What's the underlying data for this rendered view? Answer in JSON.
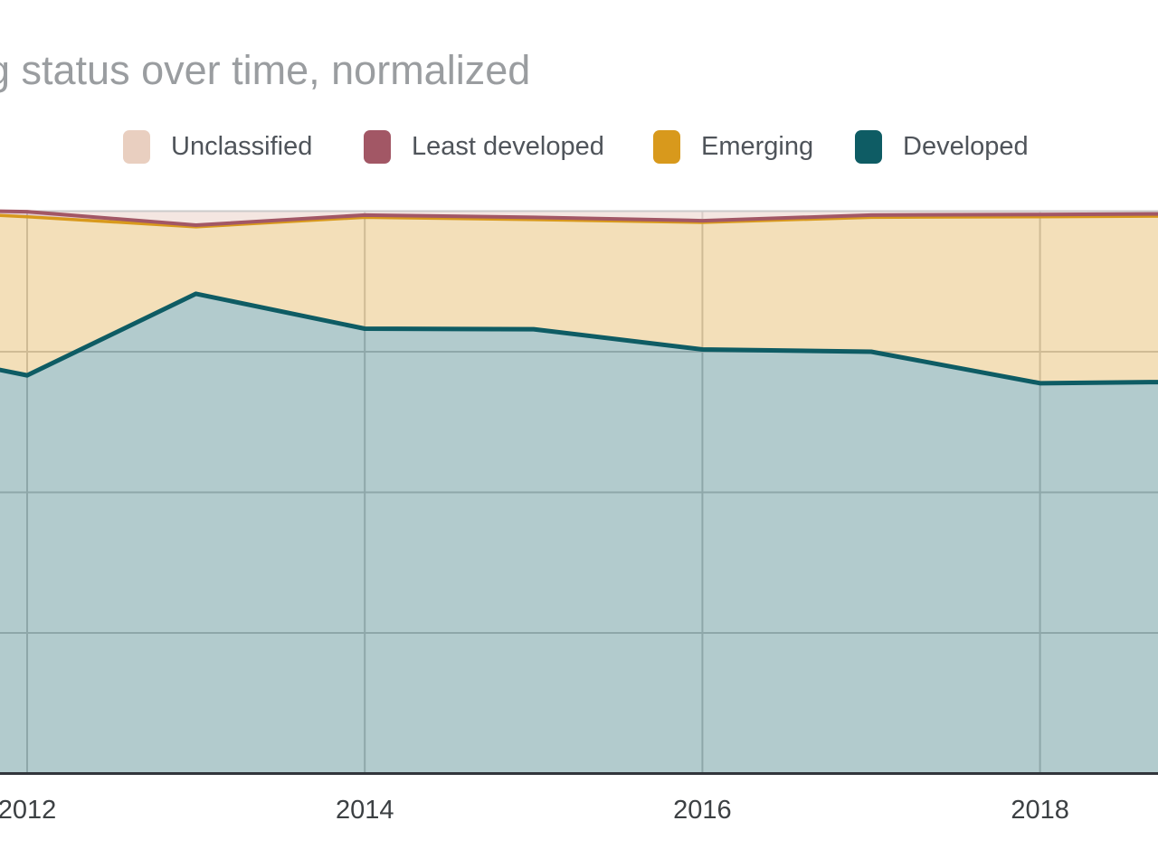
{
  "title": "g status over time, normalized",
  "legend": [
    {
      "label": "Unclassified",
      "color": "#e9cfc0"
    },
    {
      "label": "Least developed",
      "color": "#a25765"
    },
    {
      "label": "Emerging",
      "color": "#d8991c"
    },
    {
      "label": "Developed",
      "color": "#0e5c64"
    }
  ],
  "chart_data": {
    "type": "area",
    "stacked": true,
    "normalized": true,
    "title": "g status over time, normalized",
    "xlabel": "",
    "ylabel": "",
    "ylim": [
      0,
      100
    ],
    "grid": true,
    "legend_position": "top",
    "x": [
      2011.8,
      2012,
      2013,
      2014,
      2015,
      2016,
      2017,
      2018,
      2018.7
    ],
    "series": [
      {
        "name": "Developed",
        "color": "#0e5c64",
        "fill_opacity": 0.32,
        "line_width": 5,
        "values": [
          72.0,
          70.8,
          85.3,
          79.1,
          79.0,
          75.4,
          75.0,
          69.4,
          69.6
        ]
      },
      {
        "name": "Emerging",
        "color": "#d8991c",
        "fill_opacity": 0.31,
        "line_width": 3.5,
        "values": [
          27.3,
          28.2,
          11.9,
          19.8,
          19.5,
          22.6,
          23.9,
          29.6,
          29.5
        ]
      },
      {
        "name": "Least developed",
        "color": "#a25765",
        "fill_opacity": 0.3,
        "line_width": 4,
        "values": [
          0.7,
          0.9,
          0.3,
          0.4,
          0.4,
          0.3,
          0.4,
          0.4,
          0.4
        ]
      },
      {
        "name": "Unclassified",
        "color": "#e9cdc4",
        "fill_opacity": 0.5,
        "line_width": 0,
        "values": [
          0.0,
          0.1,
          2.5,
          0.7,
          1.1,
          1.7,
          0.7,
          0.6,
          0.5
        ]
      }
    ],
    "xticks": [
      2012,
      2014,
      2016,
      2018
    ],
    "xtick_labels": [
      "2012",
      "2014",
      "2016",
      "2018"
    ]
  },
  "colors": {
    "background": "#ffffff",
    "gridline": "#cbcbcb",
    "axis_line": "#31353b",
    "title_text": "#9a9da0",
    "tick_label": "#3c4043",
    "legend_text": "#4f545a"
  }
}
